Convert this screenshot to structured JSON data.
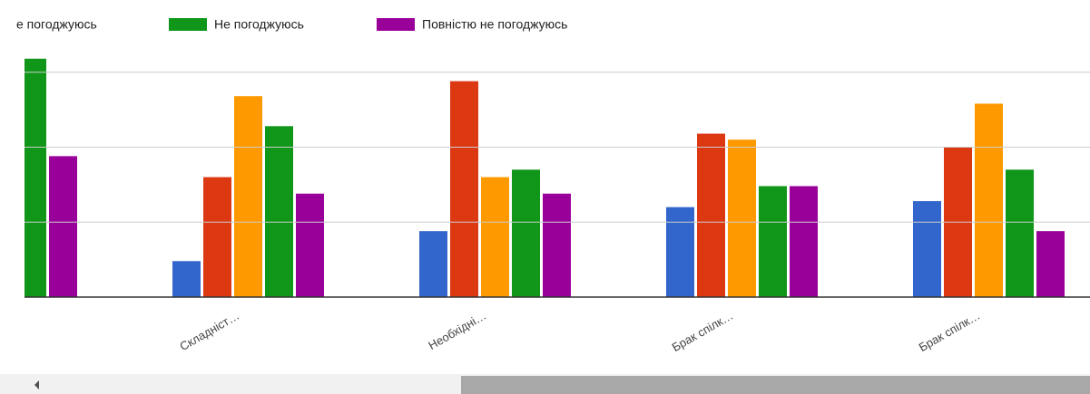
{
  "chart_data": {
    "type": "bar",
    "categories": [
      null,
      "Складніст…",
      "Необхідні…",
      "Брак спілк…",
      "Брак спілк…"
    ],
    "series": [
      {
        "color": "#3366cc",
        "values": [
          null,
          2.4,
          4.4,
          6.0,
          6.4
        ]
      },
      {
        "color": "#dc3912",
        "values": [
          null,
          8.0,
          14.4,
          10.9,
          10.0
        ]
      },
      {
        "name": "е погоджуюсь",
        "color": "#ff9900",
        "values": [
          null,
          13.4,
          8.0,
          10.5,
          12.9
        ]
      },
      {
        "name": "Не погоджуюсь",
        "color": "#109618",
        "values": [
          15.9,
          11.4,
          8.5,
          7.4,
          8.5
        ]
      },
      {
        "name": "Повністю не погоджуюсь",
        "color": "#990099",
        "values": [
          9.4,
          6.9,
          6.9,
          7.4,
          4.4
        ]
      }
    ],
    "ylim": [
      0,
      17
    ],
    "yticks": [
      0,
      5,
      10,
      15
    ],
    "grid": true
  }
}
